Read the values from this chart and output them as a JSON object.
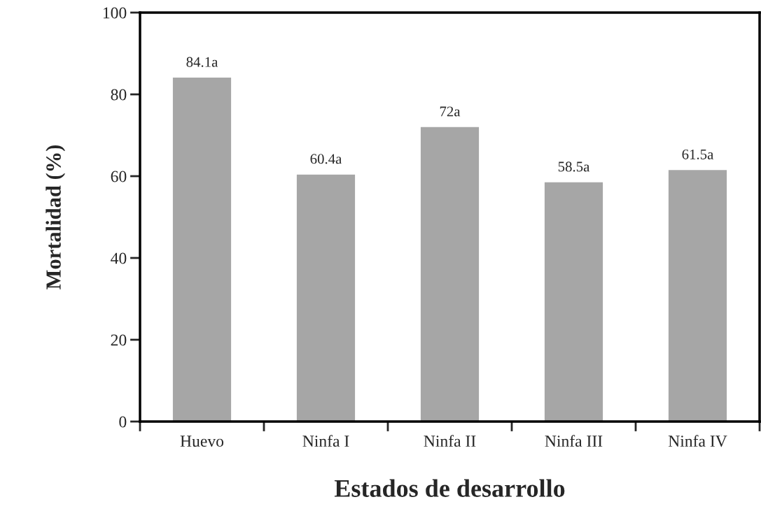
{
  "chart_data": {
    "type": "bar",
    "xlabel": "Estados de desarrollo",
    "ylabel": "Mortalidad (%)",
    "categories": [
      "Huevo",
      "Ninfa I",
      "Ninfa II",
      "Ninfa III",
      "Ninfa IV"
    ],
    "values": [
      84.1,
      60.4,
      72,
      58.5,
      61.5
    ],
    "value_labels": [
      "84.1a",
      "60.4a",
      "72a",
      "58.5a",
      "61.5a"
    ],
    "color": "#a6a6a6",
    "ylim": [
      0,
      100
    ],
    "yticks": [
      0,
      20,
      40,
      60,
      80,
      100
    ],
    "grid": false,
    "legend": false
  }
}
